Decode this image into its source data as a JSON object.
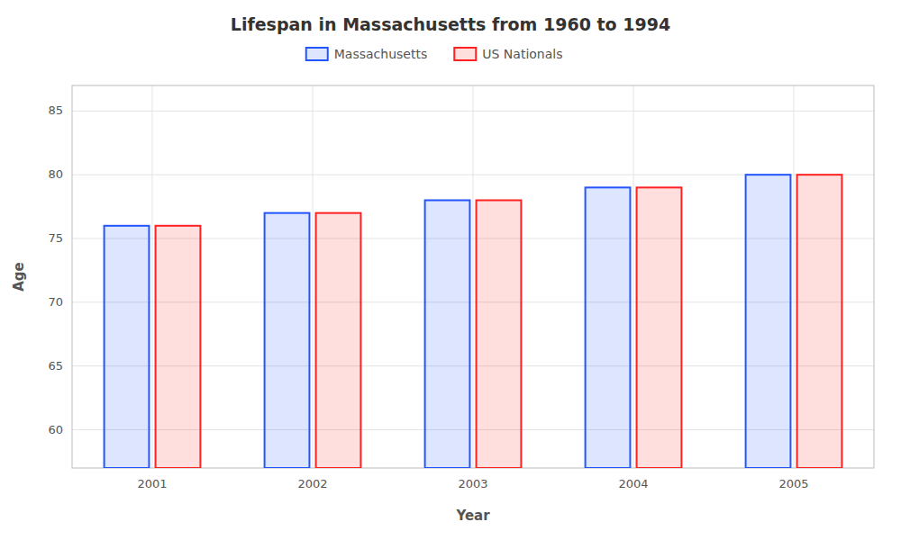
{
  "chart_data": {
    "type": "bar",
    "title": "Lifespan in Massachusetts from 1960 to 1994",
    "x_label": "Year",
    "y_label": "Age",
    "categories": [
      "2001",
      "2002",
      "2003",
      "2004",
      "2005"
    ],
    "series": [
      {
        "name": "Massachusetts",
        "color": "#2255ff",
        "values": [
          76,
          77,
          78,
          79,
          80
        ]
      },
      {
        "name": "US Nationals",
        "color": "#ff2222",
        "values": [
          76,
          77,
          78,
          79,
          80
        ]
      }
    ],
    "ylim": [
      57,
      87
    ],
    "yticks": [
      60,
      65,
      70,
      75,
      80,
      85
    ],
    "grid": true,
    "legend": "top"
  }
}
